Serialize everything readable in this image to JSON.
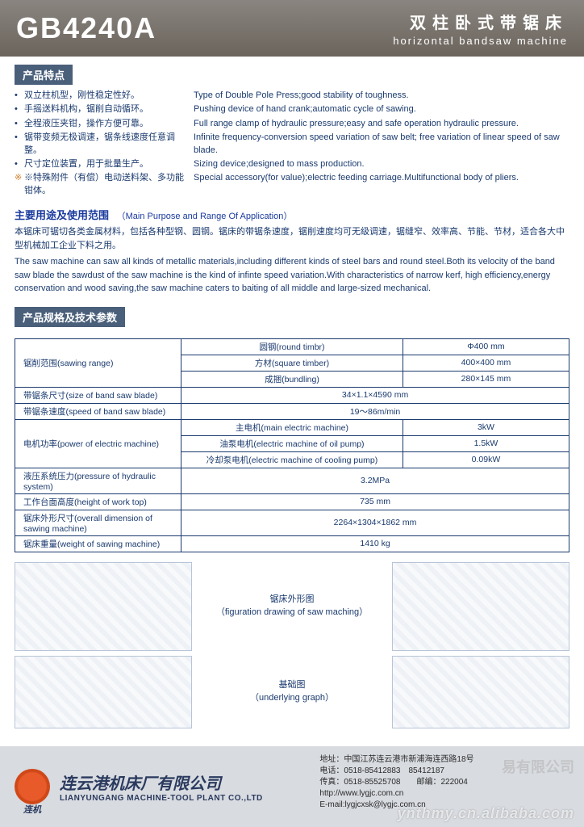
{
  "header": {
    "model": "GB4240A",
    "title_cn": "双柱卧式带锯床",
    "title_en": "horizontal bandsaw machine"
  },
  "sections": {
    "features_bar": "产品特点",
    "specs_bar": "产品规格及技术参数"
  },
  "features": [
    {
      "cn": "双立柱机型，刚性稳定性好。",
      "en": "Type of Double Pole Press;good stability of toughness."
    },
    {
      "cn": "手摇送料机构，锯削自动循环。",
      "en": "Pushing device of hand crank;automatic cycle of sawing."
    },
    {
      "cn": "全程液压夹钳，操作方便可靠。",
      "en": "Full range clamp of hydraulic pressure;easy and safe operation hydraulic pressure."
    },
    {
      "cn": "锯带变频无极调速，锯条线速度任意调整。",
      "en": "Infinite frequency-conversion speed variation of saw belt; free variation of linear speed of saw blade."
    },
    {
      "cn": "尺寸定位装置，用于批量生产。",
      "en": "Sizing device;designed to mass production."
    }
  ],
  "special_feature": {
    "cn": "※特殊附件（有偿）电动送料架、多功能钳体。",
    "en": "Special accessory(for value);electric feeding carriage.Multifunctional body of pliers."
  },
  "purpose": {
    "title_cn": "主要用途及使用范围",
    "title_en": "（Main Purpose and Range Of Application）",
    "body_cn": "本锯床可锯切各类金属材料，包括各种型钢、圆钢。锯床的带锯条速度，锯削速度均可无级调速，锯缝窄、效率高、节能、节材，适合各大中型机械加工企业下料之用。",
    "body_en": "The saw machine can saw all kinds of metallic materials,including different kinds of steel bars and round steel.Both its velocity of the band saw blade the sawdust of the saw machine is the kind of infinte speed variation.With characteristics of narrow kerf, high efficiency,energy conservation and wood saving,the saw machine caters to baiting of all middle and large-sized mechanical."
  },
  "specs": {
    "rows": [
      {
        "a": "锯削范围(sawing range)",
        "b": "圆钢(round timbr)",
        "c": "Φ400 mm",
        "rowspan_a": 3
      },
      {
        "b": "方材(square timber)",
        "c": "400×400 mm"
      },
      {
        "b": "成捆(bundling)",
        "c": "280×145 mm"
      },
      {
        "a": "带锯条尺寸(size of band saw blade)",
        "bc": "34×1.1×4590 mm"
      },
      {
        "a": "带锯条速度(speed of band saw blade)",
        "bc": "19～86m/min"
      },
      {
        "a": "电机功率(power of electric machine)",
        "b": "主电机(main electric machine)",
        "c": "3kW",
        "rowspan_a": 3
      },
      {
        "b": "油泵电机(electric machine of oil pump)",
        "c": "1.5kW"
      },
      {
        "b": "冷却泵电机(electric machine of cooling pump)",
        "c": "0.09kW"
      },
      {
        "a": "液压系统压力(pressure of hydraulic system)",
        "bc": "3.2MPa"
      },
      {
        "a": "工作台面高度(height of work top)",
        "bc": "735 mm"
      },
      {
        "a": "锯床外形尺寸(overall dimension of sawing machine)",
        "bc": "2264×1304×1862 mm"
      },
      {
        "a": "锯床重量(weight of sawing machine)",
        "bc": "1410 kg"
      }
    ]
  },
  "drawings": {
    "fig1_cn": "锯床外形图",
    "fig1_en": "（figuration drawing of saw maching）",
    "fig2_cn": "基础图",
    "fig2_en": "（underlying graph）"
  },
  "footer": {
    "logo_text": "连机",
    "company_cn": "连云港机床厂有限公司",
    "company_en": "LIANYUNGANG MACHINE-TOOL PLANT CO.,LTD",
    "address": "地址：中国江苏连云港市新浦海连西路18号",
    "tel": "电话：0518-85412883　85412187",
    "fax": "传真：0518-85525708　　邮编：222004",
    "web": "http://www.lygjc.com.cn",
    "email": "E-mail:lygjcxsk@lygjc.com.cn"
  },
  "watermarks": {
    "w1": "ynthmy.cn.alibaba.com",
    "w2": "易有限公司"
  },
  "colors": {
    "header_bg_top": "#8a8580",
    "header_bg_bottom": "#6b645c",
    "section_bar": "#4a5f7a",
    "text_main": "#1a3a6e",
    "title_link": "#1a3a9e",
    "footer_bg": "#d8dbe0",
    "logo": "#e85a2a"
  }
}
